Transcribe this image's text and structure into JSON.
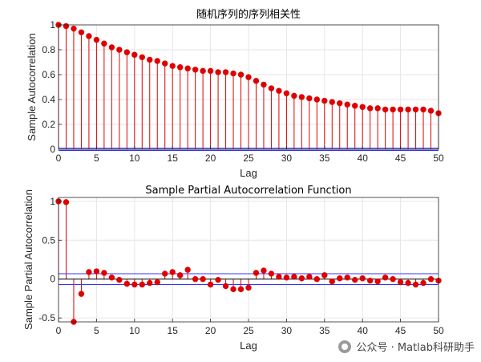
{
  "watermark": "公众号 · Matlab科研助手",
  "chart_data": [
    {
      "type": "stem",
      "title": "随机序列的序列相关性",
      "xlabel": "Lag",
      "ylabel": "Sample Autocorrelation",
      "xlim": [
        0,
        50
      ],
      "ylim": [
        0,
        1
      ],
      "xticks": [
        0,
        5,
        10,
        15,
        20,
        25,
        30,
        35,
        40,
        45,
        50
      ],
      "yticks": [
        0,
        0.2,
        0.4,
        0.6,
        0.8,
        1
      ],
      "grid": true,
      "confidence_bounds": [
        0.01,
        -0.01
      ],
      "stem_color": "#e00000",
      "bound_color": "#3333ff",
      "x": [
        0,
        1,
        2,
        3,
        4,
        5,
        6,
        7,
        8,
        9,
        10,
        11,
        12,
        13,
        14,
        15,
        16,
        17,
        18,
        19,
        20,
        21,
        22,
        23,
        24,
        25,
        26,
        27,
        28,
        29,
        30,
        31,
        32,
        33,
        34,
        35,
        36,
        37,
        38,
        39,
        40,
        41,
        42,
        43,
        44,
        45,
        46,
        47,
        48,
        49,
        50
      ],
      "values": [
        1.0,
        0.99,
        0.97,
        0.94,
        0.91,
        0.88,
        0.85,
        0.82,
        0.8,
        0.78,
        0.76,
        0.74,
        0.72,
        0.71,
        0.69,
        0.67,
        0.66,
        0.65,
        0.64,
        0.63,
        0.63,
        0.62,
        0.62,
        0.61,
        0.6,
        0.58,
        0.55,
        0.52,
        0.49,
        0.47,
        0.45,
        0.43,
        0.42,
        0.41,
        0.4,
        0.39,
        0.38,
        0.37,
        0.36,
        0.35,
        0.34,
        0.33,
        0.33,
        0.32,
        0.32,
        0.32,
        0.32,
        0.32,
        0.32,
        0.31,
        0.29
      ]
    },
    {
      "type": "stem",
      "title": "Sample Partial Autocorrelation Function",
      "xlabel": "Lag",
      "ylabel": "Sample Partial Autocorrelation",
      "xlim": [
        0,
        50
      ],
      "ylim": [
        -0.55,
        1.05
      ],
      "xticks": [
        0,
        5,
        10,
        15,
        20,
        25,
        30,
        35,
        40,
        45,
        50
      ],
      "yticks": [
        -0.5,
        0,
        0.5,
        1
      ],
      "grid": true,
      "confidence_bounds": [
        0.07,
        -0.07
      ],
      "stem_color": "#e00000",
      "bound_color": "#3333ff",
      "x": [
        0,
        1,
        2,
        3,
        4,
        5,
        6,
        7,
        8,
        9,
        10,
        11,
        12,
        13,
        14,
        15,
        16,
        17,
        18,
        19,
        20,
        21,
        22,
        23,
        24,
        25,
        26,
        27,
        28,
        29,
        30,
        31,
        32,
        33,
        34,
        35,
        36,
        37,
        38,
        39,
        40,
        41,
        42,
        43,
        44,
        45,
        46,
        47,
        48,
        49,
        50
      ],
      "values": [
        1.0,
        0.99,
        -0.55,
        -0.19,
        0.09,
        0.1,
        0.08,
        0.02,
        -0.01,
        -0.06,
        -0.07,
        -0.07,
        -0.05,
        -0.04,
        0.07,
        0.09,
        0.05,
        0.12,
        0.0,
        0.0,
        -0.07,
        -0.01,
        -0.09,
        -0.13,
        -0.13,
        -0.11,
        0.08,
        0.11,
        0.07,
        0.03,
        0.02,
        0.03,
        0.01,
        0.03,
        0.0,
        0.05,
        -0.03,
        0.01,
        0.02,
        -0.01,
        0.01,
        -0.02,
        -0.03,
        0.02,
        0.0,
        -0.04,
        -0.05,
        -0.07,
        -0.05,
        0.0,
        -0.02
      ]
    }
  ]
}
